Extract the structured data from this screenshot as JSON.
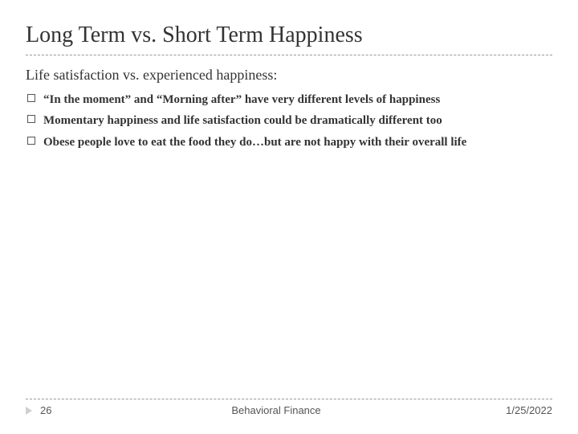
{
  "colors": {
    "background": "#ffffff",
    "text": "#333333",
    "divider": "#999999",
    "footer_text": "#555555",
    "marker": "#cfcfcf",
    "checkbox_border": "#555555"
  },
  "typography": {
    "title_fontsize": 28,
    "subtitle_fontsize": 18,
    "bullet_fontsize": 15,
    "bullet_fontweight": 700,
    "footer_fontsize": 13,
    "title_family": "Times New Roman",
    "footer_family": "Arial"
  },
  "title": "Long Term vs. Short Term Happiness",
  "subtitle": "Life satisfaction vs. experienced happiness:",
  "bullets": [
    "“In the moment” and “Morning after” have very different levels of happiness",
    "Momentary happiness and life satisfaction could be dramatically different too",
    "Obese people love to eat the food they do…but are not happy with their overall life"
  ],
  "footer": {
    "page_number": "26",
    "center_text": "Behavioral Finance",
    "date": "1/25/2022"
  }
}
